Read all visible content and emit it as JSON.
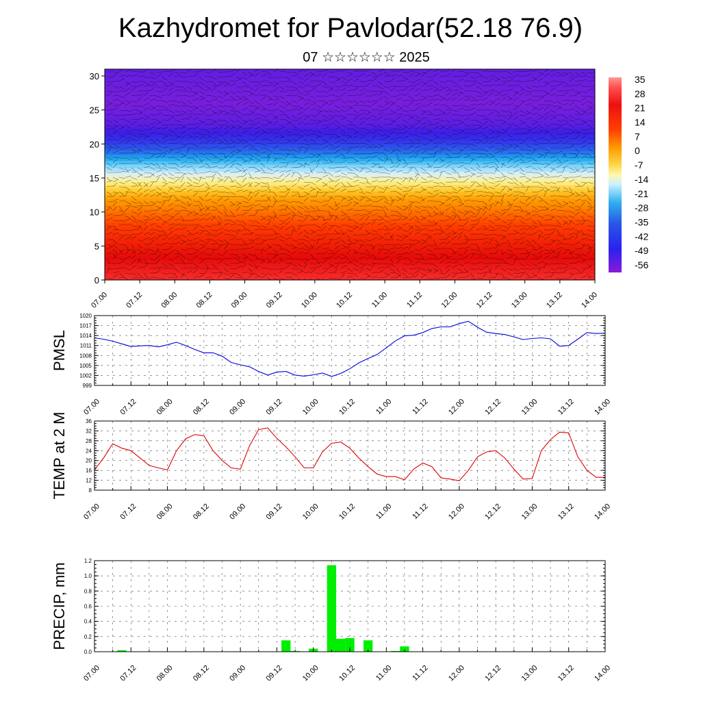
{
  "header": {
    "title": "Kazhydromet for Pavlodar(52.18 76.9)",
    "subtitle": "07 ☆☆☆☆☆☆ 2025"
  },
  "chart_data": [
    {
      "type": "heatmap",
      "title": "",
      "ylabel": "",
      "x_ticks": [
        "07.00",
        "07.12",
        "08.00",
        "08.12",
        "09.00",
        "09.12",
        "10.00",
        "10.12",
        "11.00",
        "11.12",
        "12.00",
        "12.12",
        "13.00",
        "13.12",
        "14.00"
      ],
      "y_ticks": [
        0,
        5,
        10,
        15,
        20,
        25,
        30
      ],
      "ylim": [
        0,
        31
      ],
      "colorbar_labels": [
        "35",
        "28",
        "21",
        "14",
        "7",
        "0",
        "-7",
        "-14",
        "-21",
        "-28",
        "-35",
        "-42",
        "-49",
        "-56"
      ],
      "temperature_layers": [
        {
          "height": 0,
          "value": 26
        },
        {
          "height": 4,
          "value": 20
        },
        {
          "height": 8,
          "value": 14
        },
        {
          "height": 12,
          "value": 6
        },
        {
          "height": 15,
          "value": -10
        },
        {
          "height": 17,
          "value": -22
        },
        {
          "height": 19,
          "value": -36
        },
        {
          "height": 21,
          "value": -46
        },
        {
          "height": 23,
          "value": -55
        },
        {
          "height": 26,
          "value": -60
        },
        {
          "height": 31,
          "value": -56
        }
      ],
      "overlay": "wind vectors"
    },
    {
      "type": "line",
      "ylabel": "PMSL",
      "series_color": "#0000dd",
      "ylim": [
        999,
        1020
      ],
      "y_ticks": [
        999,
        1002,
        1005,
        1008,
        1011,
        1014,
        1017,
        1020
      ],
      "x_ticks": [
        "07.00",
        "07.12",
        "08.00",
        "08.12",
        "09.00",
        "09.12",
        "10.00",
        "10.12",
        "11.00",
        "11.12",
        "12.00",
        "12.12",
        "13.00",
        "13.12",
        "14.00"
      ],
      "x": [
        0,
        3,
        6,
        9,
        12,
        15,
        18,
        21,
        24,
        27,
        30,
        33,
        36,
        39,
        42,
        45,
        48,
        51,
        54,
        57,
        60,
        63,
        66,
        69,
        72,
        75,
        78,
        81,
        84,
        87,
        90,
        93,
        96,
        99,
        102,
        105,
        108,
        111,
        114,
        117,
        120,
        123,
        126,
        129,
        132,
        135,
        138,
        141,
        144,
        147,
        150,
        153,
        156,
        159,
        162,
        165,
        168
      ],
      "values": [
        1013.3,
        1012.9,
        1012.3,
        1011.5,
        1010.7,
        1010.9,
        1011.0,
        1010.6,
        1011.2,
        1012.0,
        1011.0,
        1009.8,
        1008.8,
        1008.8,
        1007.8,
        1005.9,
        1005.2,
        1004.6,
        1003.2,
        1002.1,
        1003.0,
        1003.2,
        1002.1,
        1001.8,
        1002.2,
        1002.7,
        1001.7,
        1002.6,
        1004.0,
        1005.8,
        1007.1,
        1008.3,
        1010.3,
        1012.4,
        1013.9,
        1014.1,
        1014.9,
        1016.1,
        1016.6,
        1016.6,
        1017.6,
        1018.3,
        1016.5,
        1015.0,
        1014.6,
        1014.3,
        1013.6,
        1012.8,
        1013.1,
        1013.3,
        1013.0,
        1010.8,
        1011.0,
        1012.9,
        1014.9,
        1014.6,
        1014.7
      ]
    },
    {
      "type": "line",
      "ylabel": "TEMP at 2 M",
      "series_color": "#dd0000",
      "ylim": [
        8,
        36
      ],
      "y_ticks": [
        8,
        12,
        16,
        20,
        24,
        28,
        32,
        36
      ],
      "x_ticks": [
        "07.00",
        "07.12",
        "08.00",
        "08.12",
        "09.00",
        "09.12",
        "10.00",
        "10.12",
        "11.00",
        "11.12",
        "12.00",
        "12.12",
        "13.00",
        "13.12",
        "14.00"
      ],
      "x": [
        0,
        3,
        6,
        9,
        12,
        15,
        18,
        21,
        24,
        27,
        30,
        33,
        36,
        39,
        42,
        45,
        48,
        51,
        54,
        57,
        60,
        63,
        66,
        69,
        72,
        75,
        78,
        81,
        84,
        87,
        90,
        93,
        96,
        99,
        102,
        105,
        108,
        111,
        114,
        117,
        120,
        123,
        126,
        129,
        132,
        135,
        138,
        141,
        144,
        147,
        150,
        153,
        156,
        159,
        162,
        165,
        168
      ],
      "values": [
        16.2,
        21.0,
        26.8,
        25.0,
        24.0,
        21.0,
        18.0,
        17.0,
        16.2,
        24.0,
        28.8,
        30.5,
        30.0,
        24.0,
        20.0,
        17.0,
        16.5,
        26.0,
        32.5,
        33.2,
        29.0,
        25.5,
        21.5,
        17.0,
        17.0,
        23.5,
        27.0,
        27.5,
        25.0,
        21.0,
        17.5,
        14.5,
        13.5,
        13.5,
        12.2,
        16.5,
        19.0,
        17.5,
        13.0,
        12.5,
        11.8,
        16.0,
        21.5,
        23.5,
        24.0,
        21.0,
        16.5,
        12.5,
        12.7,
        24.0,
        28.5,
        31.5,
        31.2,
        21.5,
        16.0,
        13.2,
        13.2
      ]
    },
    {
      "type": "bar",
      "ylabel": "PRECIP, mm",
      "series_color": "#00ee00",
      "ylim": [
        0,
        1.2
      ],
      "y_ticks": [
        "0.0",
        "0.2",
        "0.4",
        "0.6",
        "0.8",
        "1.0",
        "1.2"
      ],
      "x_ticks": [
        "07.00",
        "07.12",
        "08.00",
        "08.12",
        "09.00",
        "09.12",
        "10.00",
        "10.12",
        "11.00",
        "11.12",
        "12.00",
        "12.12",
        "13.00",
        "13.12",
        "14.00"
      ],
      "x": [
        9,
        63,
        66,
        72,
        78,
        81,
        84,
        90,
        99,
        102
      ],
      "values": [
        0.02,
        0.15,
        0.01,
        0.04,
        1.14,
        0.17,
        0.18,
        0.15,
        0.01,
        0.07
      ]
    }
  ]
}
